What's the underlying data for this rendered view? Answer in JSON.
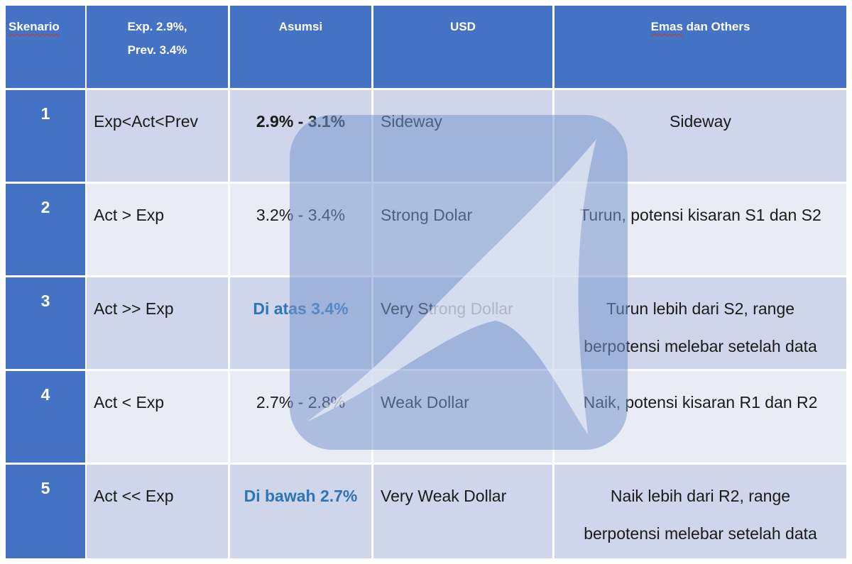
{
  "header": {
    "skenario": "Skenario",
    "exp_line1": "Exp. 2.9%,",
    "exp_line2": "Prev. 3.4%",
    "asumsi": "Asumsi",
    "usd": "USD",
    "emas_word": "Emas",
    "emas_rest": " dan Others"
  },
  "rows": [
    {
      "num": "1",
      "cond": "Exp<Act<Prev",
      "asumsi": "2.9% - 3.1%",
      "usd": "Sideway",
      "emas_line1": "Sideway",
      "emas_line2": ""
    },
    {
      "num": "2",
      "cond": "Act > Exp",
      "asumsi": "3.2% - 3.4%",
      "usd": "Strong Dolar",
      "emas_line1": "Turun, potensi kisaran S1 dan S2",
      "emas_line2": ""
    },
    {
      "num": "3",
      "cond": "Act >> Exp",
      "asumsi": "Di atas 3.4%",
      "usd": "Very Strong Dollar",
      "emas_line1": "Turun lebih dari S2, range",
      "emas_line2": "berpotensi melebar setelah data"
    },
    {
      "num": "4",
      "cond": "Act < Exp",
      "asumsi": "2.7% - 2.8%",
      "usd": "Weak Dollar",
      "emas_line1": "Naik, potensi kisaran R1 dan R2",
      "emas_line2": ""
    },
    {
      "num": "5",
      "cond": "Act << Exp",
      "asumsi": "Di bawah 2.7%",
      "usd": "Very Weak Dollar",
      "emas_line1": "Naik lebih dari R2, range",
      "emas_line2": "berpotensi melebar setelah data"
    }
  ],
  "colors": {
    "header_bg": "#4472c4",
    "row_odd_bg": "#cfd5ea",
    "row_even_bg": "#e9ebf5",
    "highlight_text": "#2e75b6",
    "spellcheck_underline": "#d93025"
  },
  "watermark_icon": "shark-fin-logo-icon"
}
